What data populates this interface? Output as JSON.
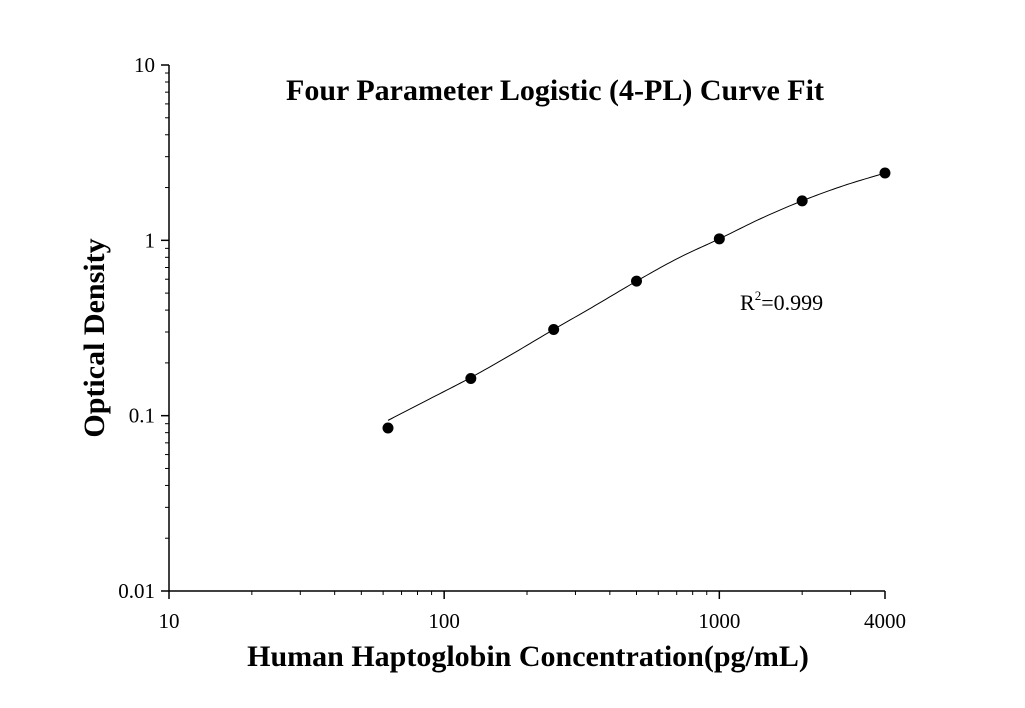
{
  "chart_data": {
    "type": "scatter",
    "title": "Four Parameter Logistic (4-PL) Curve Fit",
    "xlabel": "Human Haptoglobin Concentration(pg/mL)",
    "ylabel": "Optical Density",
    "x_scale": "log",
    "y_scale": "log",
    "xlim": [
      10,
      4000
    ],
    "ylim": [
      0.01,
      10
    ],
    "x_ticks": [
      {
        "value": 10,
        "label": "10"
      },
      {
        "value": 100,
        "label": "100"
      },
      {
        "value": 1000,
        "label": "1000"
      },
      {
        "value": 4000,
        "label": "4000"
      }
    ],
    "y_ticks": [
      {
        "value": 0.01,
        "label": "0.01"
      },
      {
        "value": 0.1,
        "label": "0.1"
      },
      {
        "value": 1,
        "label": "1"
      },
      {
        "value": 10,
        "label": "10"
      }
    ],
    "grid": false,
    "series": [
      {
        "x": [
          62.5,
          125,
          250,
          500,
          1000,
          2000,
          4000
        ],
        "y": [
          0.085,
          0.163,
          0.31,
          0.585,
          1.02,
          1.68,
          2.42
        ]
      }
    ],
    "fit": {
      "model": "4-PL",
      "x_range": [
        62.5,
        4000
      ],
      "curve": {
        "x": [
          62.5,
          88,
          125,
          177,
          250,
          354,
          500,
          707,
          1000,
          1414,
          2000,
          2828,
          4000
        ],
        "y": [
          0.094,
          0.124,
          0.165,
          0.225,
          0.31,
          0.425,
          0.585,
          0.79,
          1.02,
          1.33,
          1.68,
          2.05,
          2.42
        ]
      }
    },
    "annotation": {
      "base": "R",
      "superscript": "2",
      "rest": "=0.999"
    },
    "colors": {
      "axis": "#000000",
      "marker": "#000000",
      "curve": "#000000"
    }
  }
}
